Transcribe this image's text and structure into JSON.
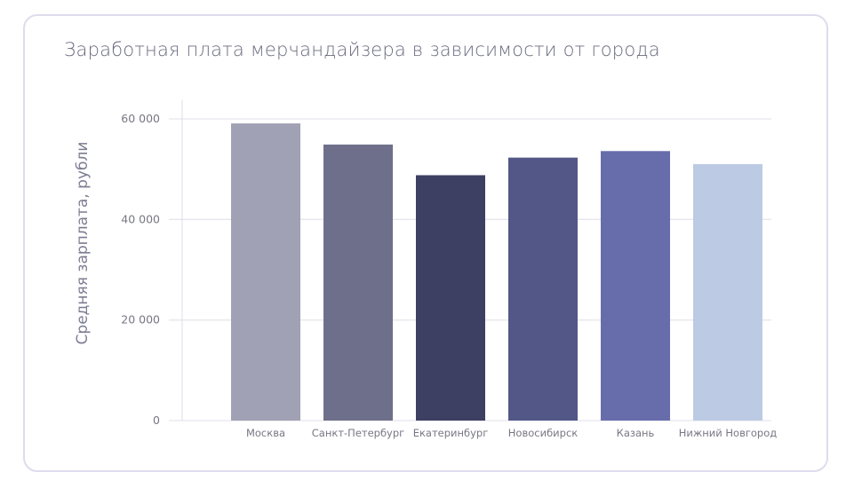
{
  "chart_data": {
    "type": "bar",
    "title": "Заработная плата мерчандайзера в зависимости от города",
    "xlabel": "",
    "ylabel": "Средняя зарплата, рубли",
    "categories": [
      "Москва",
      "Санкт-Петербург",
      "Екатеринбург",
      "Новосибирск",
      "Казань",
      "Нижний Новгород"
    ],
    "values": [
      59100,
      54900,
      48800,
      52300,
      53600,
      51000
    ],
    "colors": [
      "#a0a1b4",
      "#6e6f8a",
      "#3d3f63",
      "#525787",
      "#676dab",
      "#bccae4"
    ],
    "ylim": [
      0,
      60000
    ],
    "yticks": [
      0,
      20000,
      40000,
      60000
    ],
    "ytick_labels": [
      "0",
      "20 000",
      "40 000",
      "60 000"
    ],
    "grid": true,
    "legend": "none"
  }
}
